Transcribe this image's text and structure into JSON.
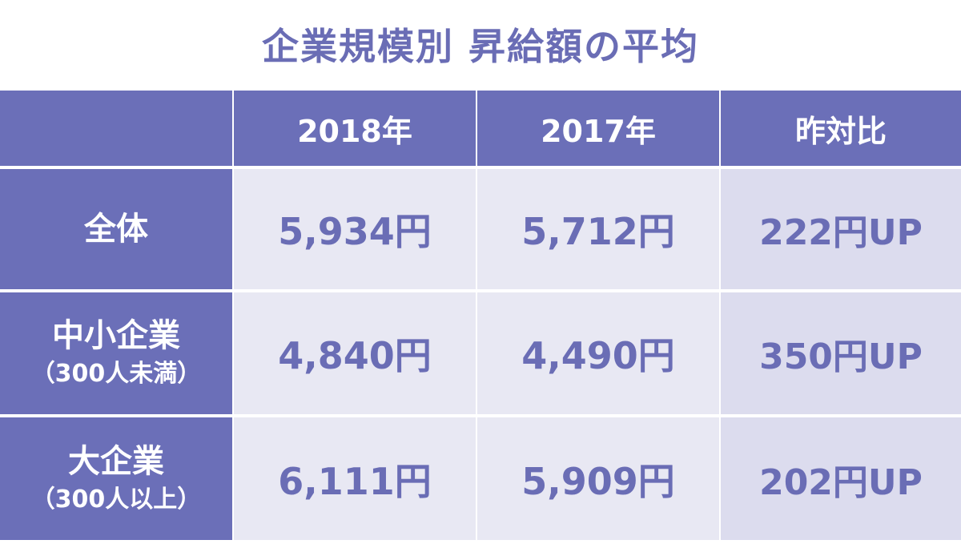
{
  "title": "企業規模別 昇給額の平均",
  "header": {
    "corner": "",
    "col_2018": "2018年",
    "col_2017": "2017年",
    "col_diff": "昨対比"
  },
  "rows": [
    {
      "label": "全体",
      "sublabel": "",
      "v2018": "5,934円",
      "v2017": "5,712円",
      "diff": "222円UP"
    },
    {
      "label": "中小企業",
      "sublabel": "（300人未満）",
      "v2018": "4,840円",
      "v2017": "4,490円",
      "diff": "350円UP"
    },
    {
      "label": "大企業",
      "sublabel": "（300人以上）",
      "v2018": "6,111円",
      "v2017": "5,909円",
      "diff": "202円UP"
    }
  ],
  "colors": {
    "header_bg": "#6b6fb8",
    "value_bg": "#e8e8f3",
    "diff_bg": "#dcdcee",
    "text_accent": "#6a6db5"
  },
  "chart_data": {
    "type": "table",
    "title": "企業規模別 昇給額の平均",
    "columns": [
      "",
      "2018年",
      "2017年",
      "昨対比"
    ],
    "rows": [
      [
        "全体",
        "5,934円",
        "5,712円",
        "222円UP"
      ],
      [
        "中小企業（300人未満）",
        "4,840円",
        "4,490円",
        "350円UP"
      ],
      [
        "大企業（300人以上）",
        "6,111円",
        "5,909円",
        "202円UP"
      ]
    ],
    "values_2018": [
      5934,
      4840,
      6111
    ],
    "values_2017": [
      5712,
      4490,
      5909
    ],
    "diff": [
      222,
      350,
      202
    ],
    "unit": "円"
  }
}
